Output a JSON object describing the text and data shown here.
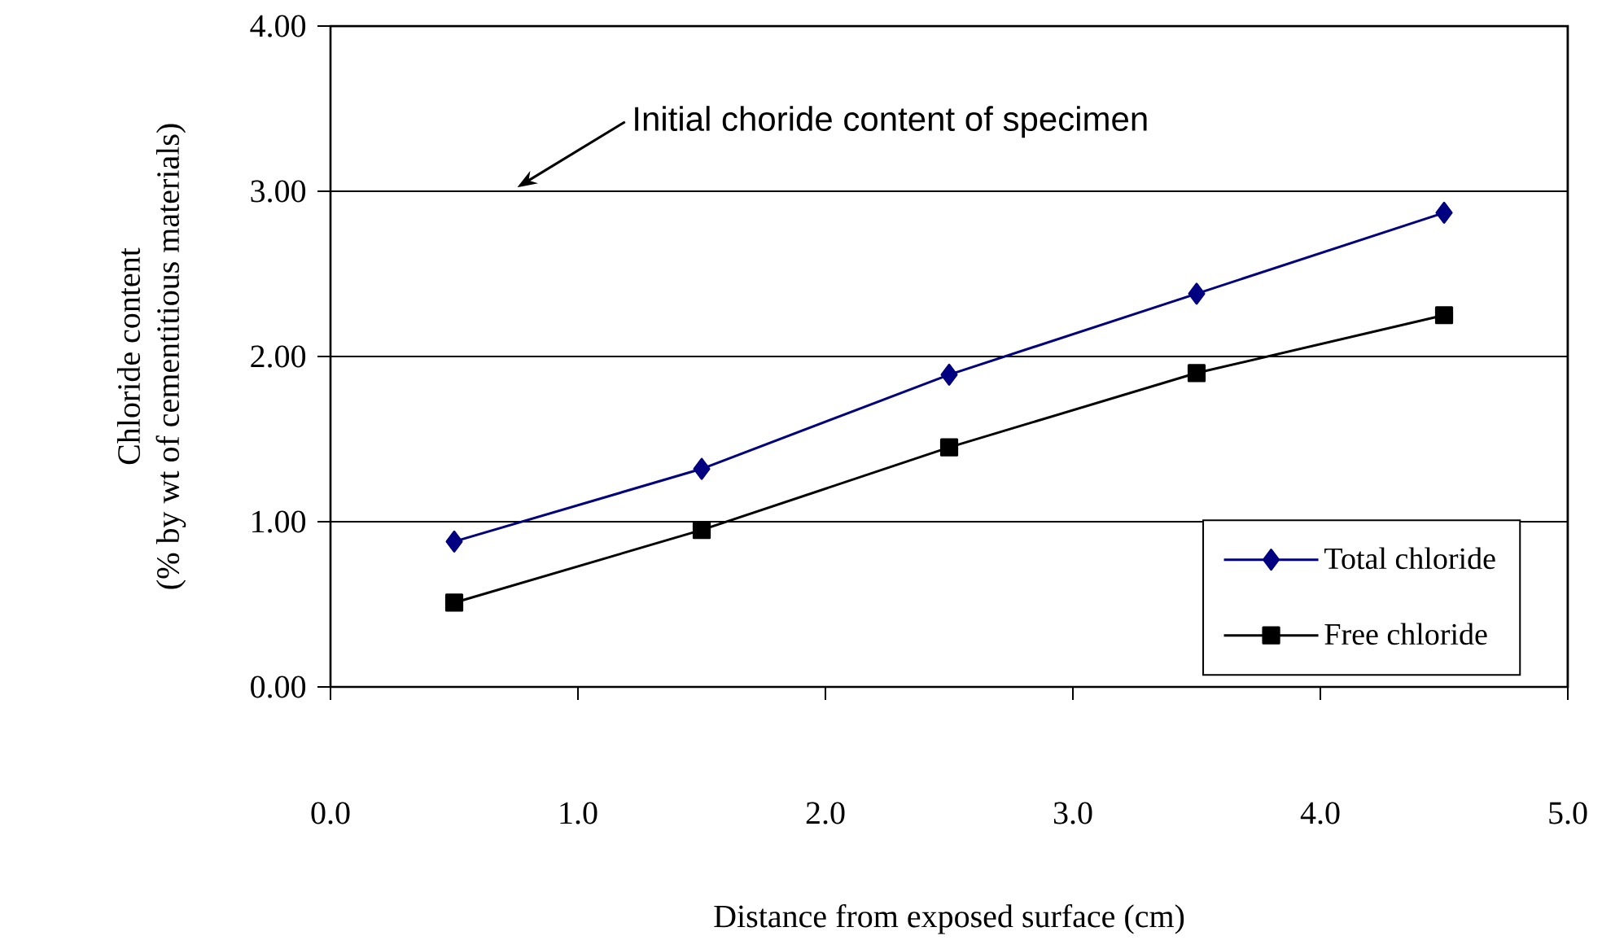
{
  "chart_data": {
    "type": "line",
    "xlabel": "Distance from exposed surface (cm)",
    "ylabel": "Chloride content\n(% by wt of cementitious materials)",
    "x": [
      0.5,
      1.5,
      2.5,
      3.5,
      4.5
    ],
    "series": [
      {
        "name": "Total chloride",
        "color": "#000080",
        "marker": "diamond",
        "values": [
          0.88,
          1.32,
          1.89,
          2.38,
          2.87
        ]
      },
      {
        "name": "Free chloride",
        "color": "#000000",
        "marker": "square",
        "values": [
          0.51,
          0.95,
          1.45,
          1.9,
          2.25
        ]
      }
    ],
    "xlim": [
      0,
      5
    ],
    "xticks": [
      {
        "value": 0,
        "label": "0.0"
      },
      {
        "value": 1,
        "label": "1.0"
      },
      {
        "value": 2,
        "label": "2.0"
      },
      {
        "value": 3,
        "label": "3.0"
      },
      {
        "value": 4,
        "label": "4.0"
      },
      {
        "value": 5,
        "label": "5.0"
      }
    ],
    "ylim": [
      0,
      4
    ],
    "yticks": [
      {
        "value": 0,
        "label": "0.00"
      },
      {
        "value": 1,
        "label": "1.00"
      },
      {
        "value": 2,
        "label": "2.00"
      },
      {
        "value": 3,
        "label": "3.00"
      },
      {
        "value": 4,
        "label": "4.00"
      }
    ],
    "grid": "y",
    "legend": "bottom right",
    "line_style": "solid",
    "annotations": [
      "Initial choride content of specimen"
    ]
  }
}
